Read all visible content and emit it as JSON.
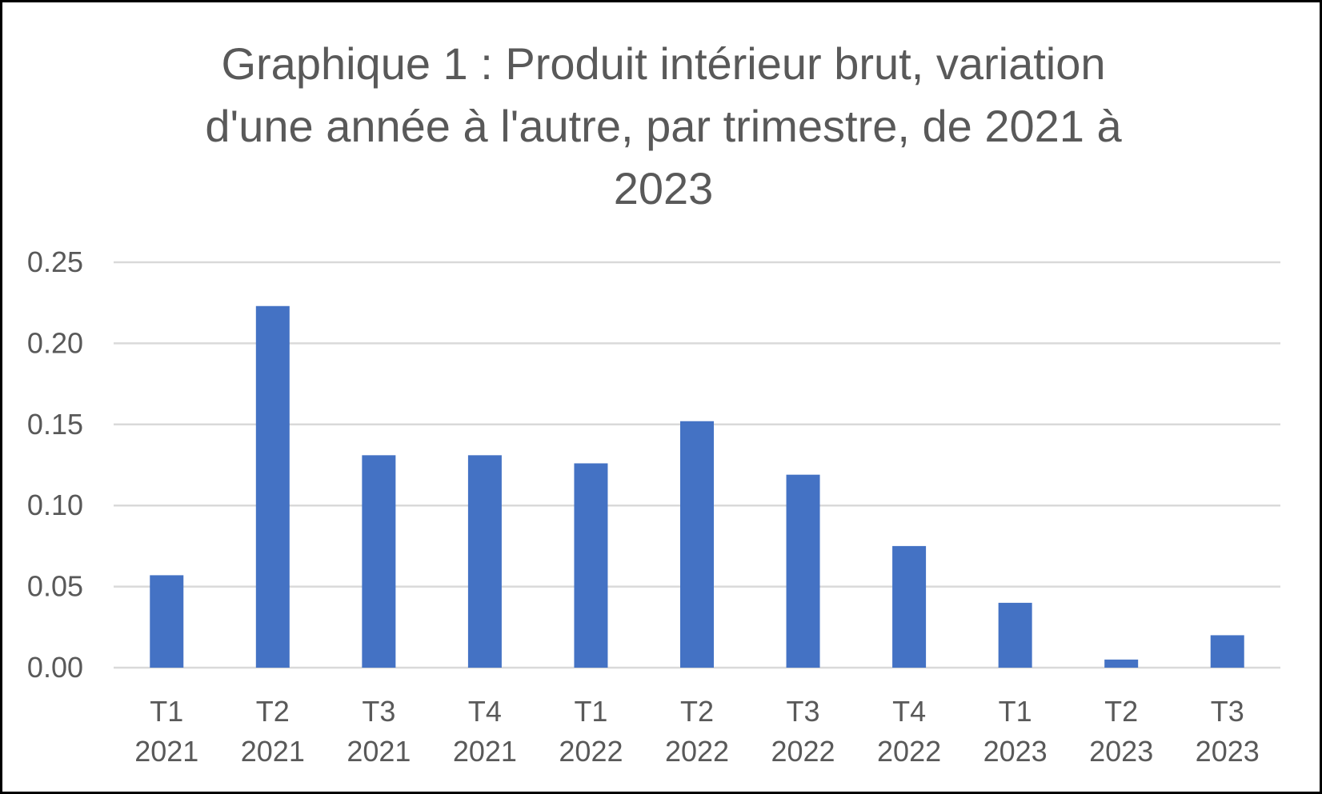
{
  "chart_data": {
    "type": "bar",
    "title_lines": [
      "Graphique 1 : Produit intérieur brut, variation",
      "d'une année à l'autre, par trimestre, de 2021 à",
      "2023"
    ],
    "categories": [
      [
        "T1",
        "2021"
      ],
      [
        "T2",
        "2021"
      ],
      [
        "T3",
        "2021"
      ],
      [
        "T4",
        "2021"
      ],
      [
        "T1",
        "2022"
      ],
      [
        "T2",
        "2022"
      ],
      [
        "T3",
        "2022"
      ],
      [
        "T4",
        "2022"
      ],
      [
        "T1",
        "2023"
      ],
      [
        "T2",
        "2023"
      ],
      [
        "T3",
        "2023"
      ]
    ],
    "values": [
      0.057,
      0.223,
      0.131,
      0.131,
      0.126,
      0.152,
      0.119,
      0.075,
      0.04,
      0.005,
      0.02
    ],
    "ylim": [
      0,
      0.25
    ],
    "yticks": [
      "0.00",
      "0.05",
      "0.10",
      "0.15",
      "0.20",
      "0.25"
    ],
    "grid": true,
    "legend": "none",
    "colors": {
      "bar": "#4472C4",
      "grid": "#D9D9D9",
      "text": "#595959"
    }
  }
}
